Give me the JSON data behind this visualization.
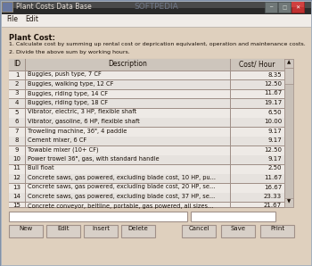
{
  "title_bar": "Plant Costs Data Base",
  "softpedia_text": "SOFTPEDIA",
  "menu_items": [
    "File",
    "Edit"
  ],
  "plant_cost_title": "Plant Cost:",
  "plant_cost_lines": [
    "1. Calculate cost by summing up rental cost or deprication equivalent, operation and maintenance costs.",
    "2. Divide the above sum by working hours."
  ],
  "table_headers": [
    "ID",
    "Description",
    "Cost/ Hour"
  ],
  "table_data": [
    [
      1,
      "Buggies, push type, 7 CF",
      "8.35"
    ],
    [
      2,
      "Buggies, walking type, 12 CF",
      "12.50"
    ],
    [
      3,
      "Buggies, riding type, 14 CF",
      "11.67"
    ],
    [
      4,
      "Buggies, riding type, 18 CF",
      "19.17"
    ],
    [
      5,
      "Vibrator, electric, 3 HP, flexible shaft",
      "6.50"
    ],
    [
      6,
      "Vibrator, gasoline, 6 HP, flexible shaft",
      "10.00"
    ],
    [
      7,
      "Troweling machine, 36\", 4 paddle",
      "9.17"
    ],
    [
      8,
      "Cement mixer, 6 CF",
      "9.17"
    ],
    [
      9,
      "Towable mixer (10+ CF)",
      "12.50"
    ],
    [
      10,
      "Power trowel 36\", gas, with standard handle",
      "9.17"
    ],
    [
      11,
      "Bull float",
      "2.50"
    ],
    [
      12,
      "Concrete saws, gas powered, excluding blade cost, 10 HP, pu...",
      "11.67"
    ],
    [
      13,
      "Concrete saws, gas powered, excluding blade cost, 20 HP, se...",
      "16.67"
    ],
    [
      14,
      "Concrete saws, gas powered, excluding blade cost, 37 HP, se...",
      "23.33"
    ],
    [
      15,
      "Concrete conveyor, beltline, portable, gas powered, all sizes...",
      "21.67"
    ]
  ],
  "buttons": [
    "New",
    "Edit",
    "Insert",
    "Delete",
    "Cancel",
    "Save",
    "Print"
  ],
  "bg_color": "#dfd0be",
  "titlebar_color": "#2a2a2a",
  "titlebar_gradient": "#4a4a4a",
  "table_header_bg": "#cdc5bc",
  "table_row_light": "#eeeae6",
  "table_row_dark": "#e6e2de",
  "table_bg": "#f8f6f4",
  "table_border": "#a09088",
  "button_bg": "#d8d0c8",
  "window_bg": "#e8e0d8",
  "menu_bg": "#f0ece8",
  "text_color": "#1a1008",
  "scrollbar_bg": "#c8c0b8",
  "scrollbar_thumb": "#d0c8c0",
  "outer_border": "#8090a8",
  "inner_border": "#b8c0c8"
}
